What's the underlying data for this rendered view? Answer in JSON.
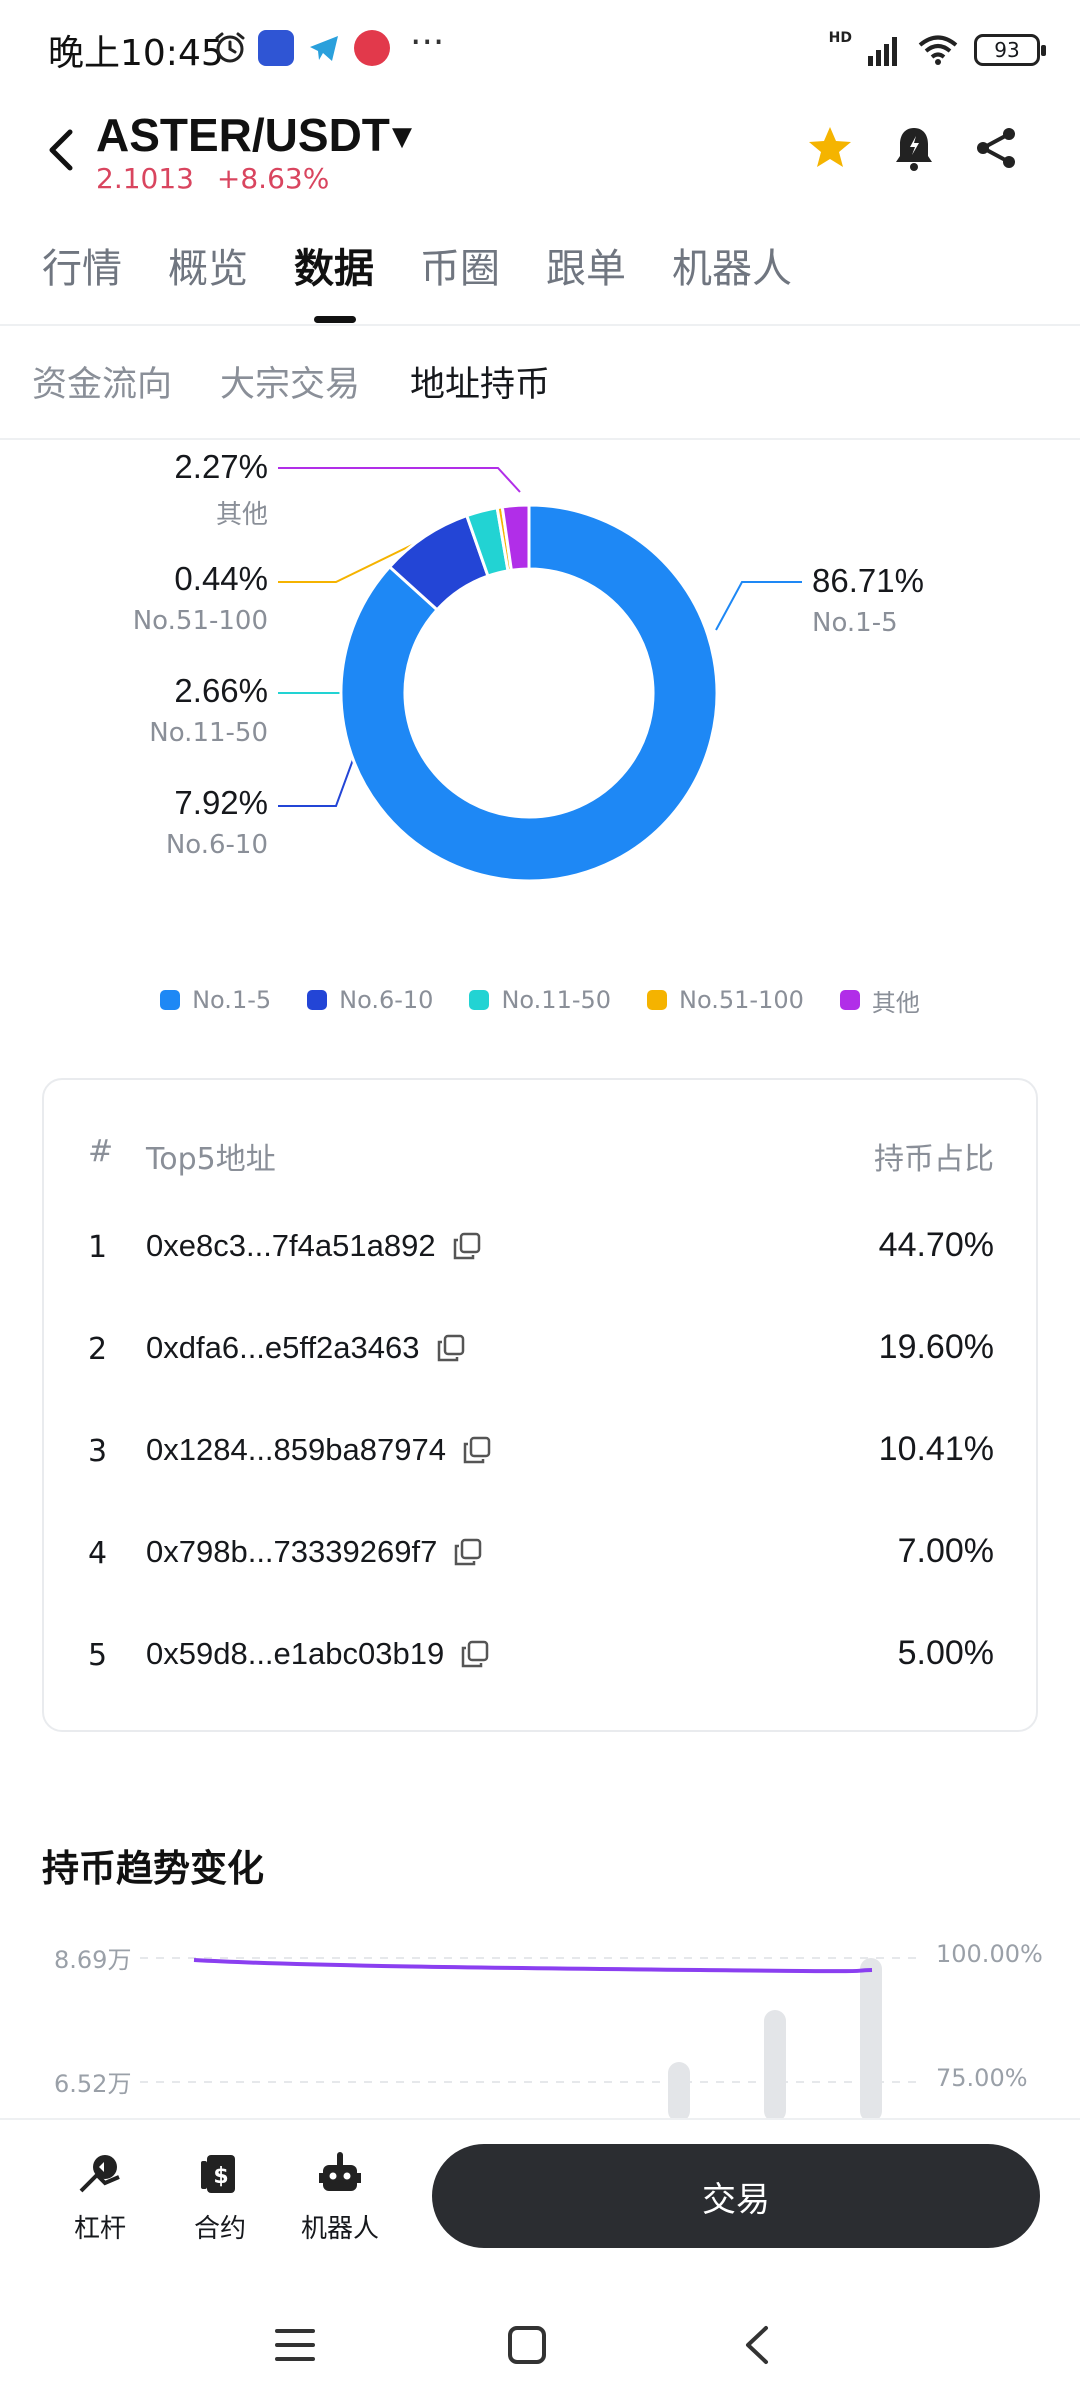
{
  "status_bar": {
    "time": "晚上10:45",
    "battery": "93",
    "more": "···",
    "network": "HD"
  },
  "header": {
    "pair": "ASTER/USDT",
    "price": "2.1013",
    "change": "+8.63%"
  },
  "tabs": [
    {
      "label": "行情"
    },
    {
      "label": "概览"
    },
    {
      "label": "数据",
      "active": true
    },
    {
      "label": "币圈"
    },
    {
      "label": "跟单"
    },
    {
      "label": "机器人"
    }
  ],
  "sub_tabs": [
    {
      "label": "资金流向"
    },
    {
      "label": "大宗交易"
    },
    {
      "label": "地址持币",
      "active": true
    }
  ],
  "holding_distribution": {
    "segments": [
      {
        "name": "No.1-5",
        "percent": "86.71%",
        "value": 86.71,
        "color": "#1e88f5"
      },
      {
        "name": "No.6-10",
        "percent": "7.92%",
        "value": 7.92,
        "color": "#2345d6"
      },
      {
        "name": "No.11-50",
        "percent": "2.66%",
        "value": 2.66,
        "color": "#22d3d3"
      },
      {
        "name": "No.51-100",
        "percent": "0.44%",
        "value": 0.44,
        "color": "#f5b300"
      },
      {
        "name": "其他",
        "percent": "2.27%",
        "value": 2.27,
        "color": "#b12ee8"
      }
    ]
  },
  "top5_table": {
    "col_index": "#",
    "col_address": "Top5地址",
    "col_share": "持币占比",
    "rows": [
      {
        "rank": "1",
        "address": "0xe8c3...7f4a51a892",
        "share": "44.70%"
      },
      {
        "rank": "2",
        "address": "0xdfa6...e5ff2a3463",
        "share": "19.60%"
      },
      {
        "rank": "3",
        "address": "0x1284...859ba87974",
        "share": "10.41%"
      },
      {
        "rank": "4",
        "address": "0x798b...73339269f7",
        "share": "7.00%"
      },
      {
        "rank": "5",
        "address": "0x59d8...e1abc03b19",
        "share": "5.00%"
      }
    ]
  },
  "trend": {
    "title": "持币趋势变化",
    "left_ticks": [
      "8.69万",
      "6.52万"
    ],
    "right_ticks": [
      "100.00%",
      "75.00%"
    ],
    "line_color": "#8a3ff0",
    "bar_color": "#e3e5e8"
  },
  "bottom_bar": {
    "items": [
      {
        "label": "杠杆"
      },
      {
        "label": "合约"
      },
      {
        "label": "机器人"
      }
    ],
    "trade_label": "交易"
  },
  "colors": {
    "up": "#d9455f",
    "accent_star": "#f5b400"
  }
}
